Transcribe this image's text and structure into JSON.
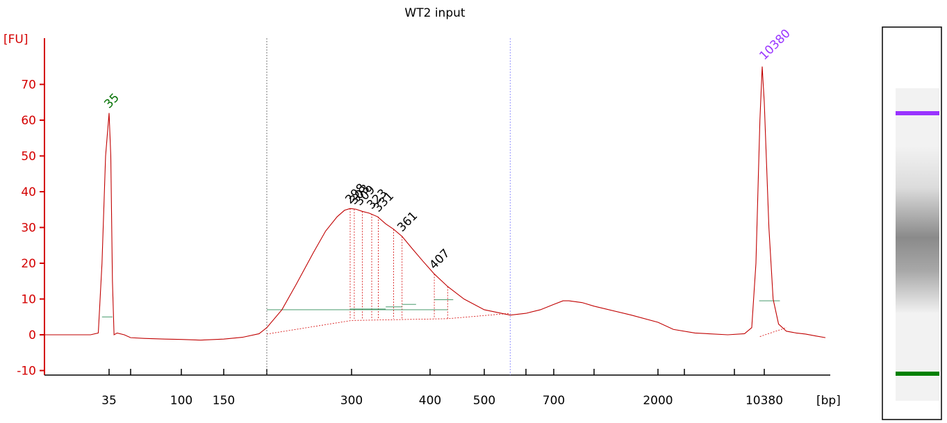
{
  "chart_data": {
    "type": "line",
    "title": "WT2 input",
    "ylabel": "[FU]",
    "xlabel": "[bp]",
    "ylim": [
      -11,
      78
    ],
    "y_ticks": [
      70,
      60,
      50,
      40,
      30,
      20,
      10,
      0,
      -10
    ],
    "x_ticks": [
      {
        "label": "35",
        "bp": 35,
        "color": "#000000"
      },
      {
        "label": "",
        "bp": 50,
        "color": "#000000"
      },
      {
        "label": "100",
        "bp": 100,
        "color": "#000000"
      },
      {
        "label": "150",
        "bp": 150,
        "color": "#000000"
      },
      {
        "label": "",
        "bp": 200,
        "color": "#000000"
      },
      {
        "label": "300",
        "bp": 300,
        "color": "#000000"
      },
      {
        "label": "400",
        "bp": 400,
        "color": "#000000"
      },
      {
        "label": "500",
        "bp": 500,
        "color": "#000000"
      },
      {
        "label": "",
        "bp": 600,
        "color": "#000000"
      },
      {
        "label": "700",
        "bp": 700,
        "color": "#000000"
      },
      {
        "label": "",
        "bp": 1000,
        "color": "#000000"
      },
      {
        "label": "2000",
        "bp": 2000,
        "color": "#000000"
      },
      {
        "label": "",
        "bp": 4000,
        "color": "#000000"
      },
      {
        "label": "",
        "bp": 7000,
        "color": "#000000"
      },
      {
        "label": "10380",
        "bp": 10380,
        "color": "#000000"
      }
    ],
    "series": [
      {
        "color": "#c00000",
        "x": [
          20,
          30,
          32,
          33,
          34,
          35,
          36,
          37,
          38,
          40,
          45,
          50,
          60,
          80,
          100,
          120,
          150,
          170,
          190,
          200,
          215,
          230,
          250,
          265,
          280,
          290,
          298,
          305,
          312,
          320,
          330,
          340,
          350,
          361,
          375,
          390,
          407,
          430,
          460,
          500,
          560,
          600,
          650,
          700,
          760,
          800,
          900,
          1000,
          1500,
          2000,
          3000,
          4500,
          6500,
          8000,
          8800,
          9300,
          9800,
          10100,
          10380,
          10700,
          11000,
          11400,
          12000,
          12800,
          13600,
          14500,
          15500
        ],
        "y": [
          0,
          0,
          0.5,
          20,
          50,
          62,
          50,
          15,
          0,
          0.5,
          0,
          -0.8,
          -1.0,
          -1.2,
          -1.3,
          -1.5,
          -1.2,
          -0.7,
          0.3,
          2,
          7,
          14,
          23,
          29,
          33,
          34.8,
          35.3,
          35.1,
          34.5,
          34.0,
          33.0,
          31.0,
          29.5,
          27.5,
          24.0,
          20.5,
          17.0,
          13.5,
          10.0,
          7.0,
          5.5,
          6.0,
          7.0,
          8.5,
          9.5,
          9.5,
          9.0,
          8.0,
          5.5,
          3.5,
          1.5,
          0.5,
          0.0,
          0.3,
          2,
          20,
          60,
          75,
          65,
          30,
          10,
          3,
          1.0,
          0.5,
          0.2,
          -0.3,
          -0.8
        ]
      }
    ],
    "peaks": [
      {
        "label": "35",
        "bp": 35,
        "fu": 62,
        "color": "#007000"
      },
      {
        "label": "298",
        "bp": 298,
        "fu": 35.3,
        "color": "#000000"
      },
      {
        "label": "303",
        "bp": 303,
        "fu": 35.1,
        "color": "#000000"
      },
      {
        "label": "309",
        "bp": 309,
        "fu": 34.8,
        "color": "#000000"
      },
      {
        "label": "323",
        "bp": 323,
        "fu": 33.8,
        "color": "#000000"
      },
      {
        "label": "331",
        "bp": 331,
        "fu": 33.0,
        "color": "#000000"
      },
      {
        "label": "361",
        "bp": 361,
        "fu": 27.5,
        "color": "#000000"
      },
      {
        "label": "407",
        "bp": 407,
        "fu": 17.0,
        "color": "#000000"
      },
      {
        "label": "10380",
        "bp": 10380,
        "fu": 75.5,
        "color": "#9933ff"
      }
    ],
    "peak_drops": [
      {
        "bp": 298,
        "fu": 35.3
      },
      {
        "bp": 303,
        "fu": 35.1
      },
      {
        "bp": 312,
        "fu": 34.5
      },
      {
        "bp": 323,
        "fu": 33.8
      },
      {
        "bp": 331,
        "fu": 33.0
      },
      {
        "bp": 350,
        "fu": 29.5
      },
      {
        "bp": 361,
        "fu": 27.5
      },
      {
        "bp": 407,
        "fu": 17.0
      },
      {
        "bp": 430,
        "fu": 13.5
      }
    ],
    "region_markers_bp": [
      200,
      560
    ],
    "grid": false,
    "legend": "none"
  }
}
